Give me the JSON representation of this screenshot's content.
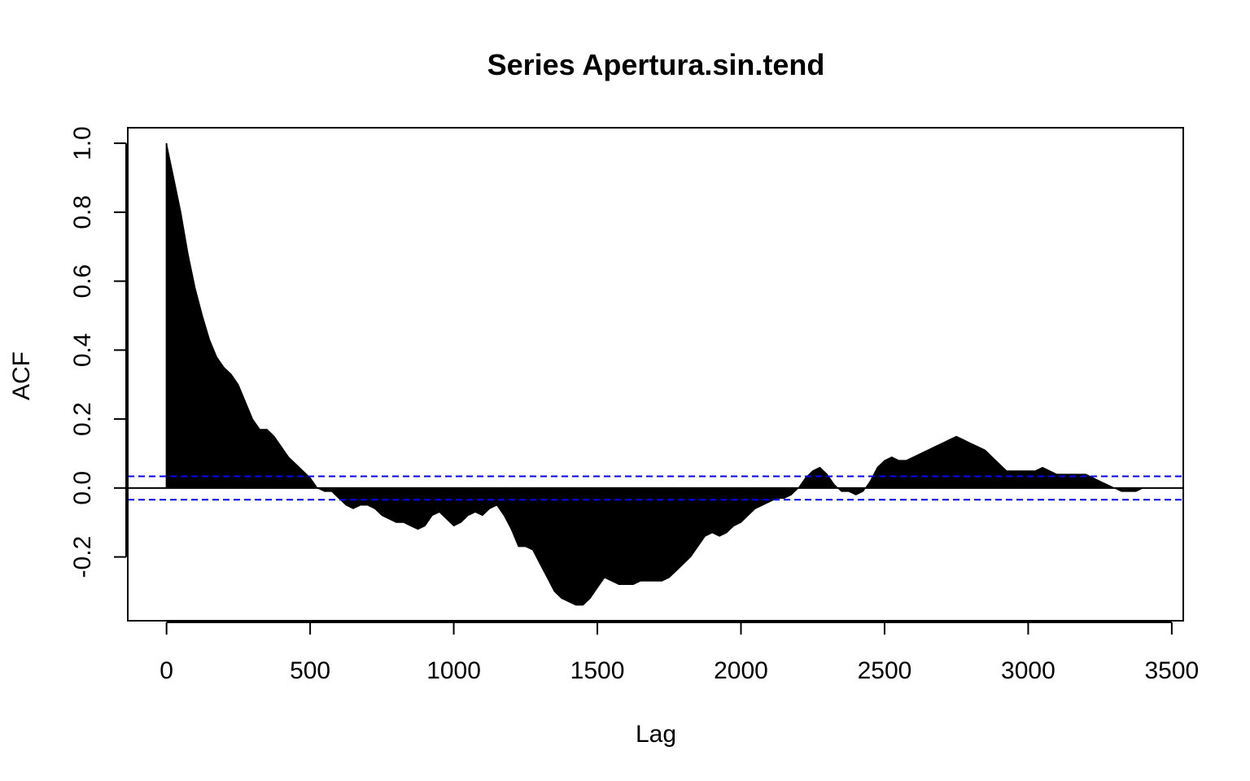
{
  "chart_data": {
    "type": "area",
    "title": "Series Apertura.sin.tend",
    "xlabel": "Lag",
    "ylabel": "ACF",
    "xlim": [
      -135,
      3540
    ],
    "ylim": [
      -0.385,
      1.045
    ],
    "x_ticks": [
      0,
      500,
      1000,
      1500,
      2000,
      2500,
      3000,
      3500
    ],
    "x_tick_labels": [
      "0",
      "500",
      "1000",
      "1500",
      "2000",
      "2500",
      "3000",
      "3500"
    ],
    "y_ticks": [
      -0.2,
      0.0,
      0.2,
      0.4,
      0.6,
      0.8,
      1.0
    ],
    "y_tick_labels": [
      "-0.2",
      "0.0",
      "0.2",
      "0.4",
      "0.6",
      "0.8",
      "1.0"
    ],
    "confidence_band": 0.034,
    "confidence_color": "#0000ff",
    "fill_color": "#000000",
    "grid": false,
    "series": [
      {
        "x": [
          0,
          25,
          50,
          75,
          100,
          125,
          150,
          175,
          200,
          225,
          250,
          275,
          300,
          325,
          350,
          375,
          400,
          425,
          450,
          475,
          500,
          525,
          550,
          575,
          600,
          625,
          650,
          675,
          700,
          725,
          750,
          775,
          800,
          825,
          850,
          875,
          900,
          925,
          950,
          975,
          1000,
          1025,
          1050,
          1075,
          1100,
          1125,
          1150,
          1175,
          1200,
          1225,
          1250,
          1275,
          1300,
          1325,
          1350,
          1375,
          1400,
          1425,
          1450,
          1475,
          1500,
          1525,
          1550,
          1575,
          1600,
          1625,
          1650,
          1675,
          1700,
          1725,
          1750,
          1775,
          1800,
          1825,
          1850,
          1875,
          1900,
          1925,
          1950,
          1975,
          2000,
          2025,
          2050,
          2075,
          2100,
          2125,
          2150,
          2175,
          2200,
          2225,
          2250,
          2275,
          2300,
          2325,
          2350,
          2375,
          2400,
          2425,
          2450,
          2475,
          2500,
          2525,
          2550,
          2575,
          2600,
          2625,
          2650,
          2675,
          2700,
          2725,
          2750,
          2775,
          2800,
          2825,
          2850,
          2875,
          2900,
          2925,
          2950,
          2975,
          3000,
          3025,
          3050,
          3075,
          3100,
          3125,
          3150,
          3175,
          3200,
          3225,
          3250,
          3275,
          3300,
          3325,
          3350,
          3375,
          3400
        ],
        "values": [
          1.0,
          0.9,
          0.8,
          0.68,
          0.58,
          0.5,
          0.43,
          0.38,
          0.35,
          0.33,
          0.3,
          0.25,
          0.2,
          0.17,
          0.17,
          0.15,
          0.12,
          0.09,
          0.07,
          0.05,
          0.03,
          0.0,
          -0.01,
          -0.01,
          -0.03,
          -0.05,
          -0.06,
          -0.05,
          -0.05,
          -0.06,
          -0.08,
          -0.09,
          -0.1,
          -0.1,
          -0.11,
          -0.12,
          -0.11,
          -0.08,
          -0.07,
          -0.09,
          -0.11,
          -0.1,
          -0.08,
          -0.07,
          -0.08,
          -0.06,
          -0.05,
          -0.08,
          -0.12,
          -0.17,
          -0.17,
          -0.18,
          -0.22,
          -0.26,
          -0.3,
          -0.32,
          -0.33,
          -0.34,
          -0.34,
          -0.32,
          -0.29,
          -0.26,
          -0.27,
          -0.28,
          -0.28,
          -0.28,
          -0.27,
          -0.27,
          -0.27,
          -0.27,
          -0.26,
          -0.24,
          -0.22,
          -0.2,
          -0.17,
          -0.14,
          -0.13,
          -0.14,
          -0.13,
          -0.11,
          -0.1,
          -0.08,
          -0.06,
          -0.05,
          -0.04,
          -0.03,
          -0.03,
          -0.02,
          0.0,
          0.03,
          0.05,
          0.06,
          0.04,
          0.01,
          -0.01,
          -0.01,
          -0.02,
          -0.01,
          0.02,
          0.06,
          0.08,
          0.09,
          0.08,
          0.08,
          0.09,
          0.1,
          0.11,
          0.12,
          0.13,
          0.14,
          0.15,
          0.14,
          0.13,
          0.12,
          0.11,
          0.09,
          0.07,
          0.05,
          0.05,
          0.05,
          0.05,
          0.05,
          0.06,
          0.05,
          0.04,
          0.04,
          0.04,
          0.04,
          0.04,
          0.03,
          0.02,
          0.01,
          0.0,
          -0.01,
          -0.01,
          -0.01,
          0.0
        ]
      }
    ]
  }
}
